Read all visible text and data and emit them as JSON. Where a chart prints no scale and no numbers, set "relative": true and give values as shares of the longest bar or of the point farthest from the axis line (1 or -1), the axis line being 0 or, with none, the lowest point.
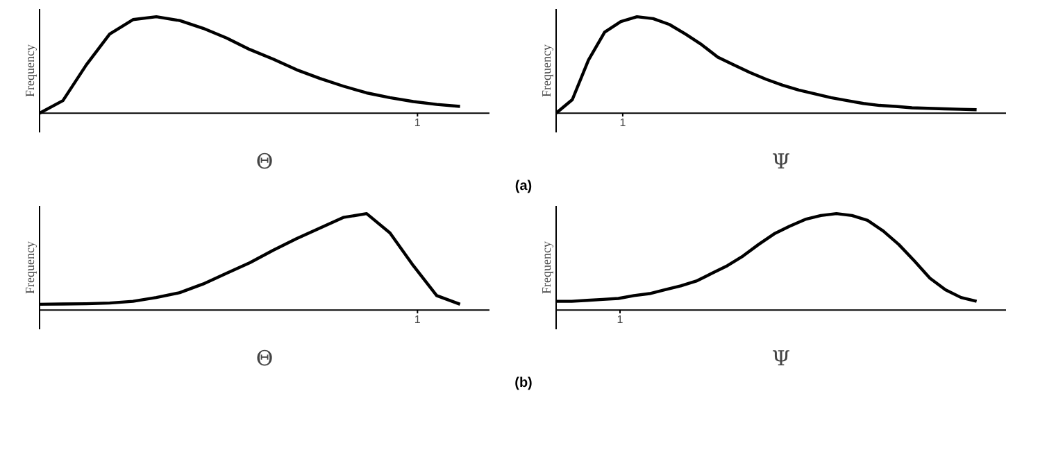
{
  "chart_data": [
    {
      "type": "line",
      "relative": true,
      "ylabel": "Frequency",
      "xlabel": "Θ",
      "annotations": [
        "1",
        "(a)"
      ],
      "categories": [
        null,
        null,
        null,
        null,
        null,
        null,
        null,
        null,
        null,
        null,
        null,
        null,
        null,
        null,
        null,
        null,
        null,
        null,
        null
      ],
      "series": [
        {
          "color": "#000000",
          "values": [
            0,
            0.13,
            0.5,
            0.82,
            0.97,
            1,
            0.96,
            0.88,
            0.78,
            0.66,
            0.56,
            0.45,
            0.36,
            0.28,
            0.21,
            0.16,
            0.12,
            0.09,
            0.07
          ]
        }
      ]
    },
    {
      "type": "line",
      "relative": true,
      "ylabel": "Frequency",
      "xlabel": "Ψ",
      "annotations": [
        "1"
      ],
      "categories": [
        null,
        null,
        null,
        null,
        null,
        null,
        null,
        null,
        null,
        null,
        null,
        null,
        null,
        null,
        null,
        null,
        null,
        null,
        null,
        null,
        null,
        null,
        null,
        null,
        null,
        null,
        null
      ],
      "series": [
        {
          "color": "#000000",
          "values": [
            0,
            0.14,
            0.55,
            0.84,
            0.95,
            1,
            0.98,
            0.92,
            0.82,
            0.71,
            0.58,
            0.5,
            0.42,
            0.35,
            0.29,
            0.24,
            0.2,
            0.16,
            0.13,
            0.1,
            0.08,
            0.07,
            0.055,
            0.05,
            0.045,
            0.04,
            0.035
          ]
        }
      ]
    },
    {
      "type": "line",
      "relative": true,
      "ylabel": "Frequency",
      "xlabel": "Θ",
      "annotations": [
        "1",
        "(b)"
      ],
      "categories": [
        null,
        null,
        null,
        null,
        null,
        null,
        null,
        null,
        null,
        null,
        null,
        null,
        null,
        null,
        null,
        null,
        null,
        null,
        null
      ],
      "series": [
        {
          "color": "#000000",
          "values": [
            0.06,
            0.062,
            0.065,
            0.072,
            0.09,
            0.13,
            0.18,
            0.27,
            0.38,
            0.49,
            0.62,
            0.74,
            0.85,
            0.96,
            1,
            0.8,
            0.46,
            0.15,
            0.06
          ]
        }
      ]
    },
    {
      "type": "line",
      "relative": true,
      "ylabel": "Frequency",
      "xlabel": "Ψ",
      "annotations": [
        "1"
      ],
      "categories": [
        null,
        null,
        null,
        null,
        null,
        null,
        null,
        null,
        null,
        null,
        null,
        null,
        null,
        null,
        null,
        null,
        null,
        null,
        null,
        null,
        null,
        null,
        null,
        null,
        null,
        null,
        null,
        null
      ],
      "series": [
        {
          "color": "#000000",
          "values": [
            0.09,
            0.09,
            0.1,
            0.11,
            0.12,
            0.15,
            0.17,
            0.21,
            0.25,
            0.3,
            0.38,
            0.46,
            0.56,
            0.68,
            0.79,
            0.87,
            0.94,
            0.98,
            1,
            0.98,
            0.93,
            0.82,
            0.68,
            0.51,
            0.33,
            0.21,
            0.13,
            0.09
          ]
        }
      ]
    }
  ]
}
